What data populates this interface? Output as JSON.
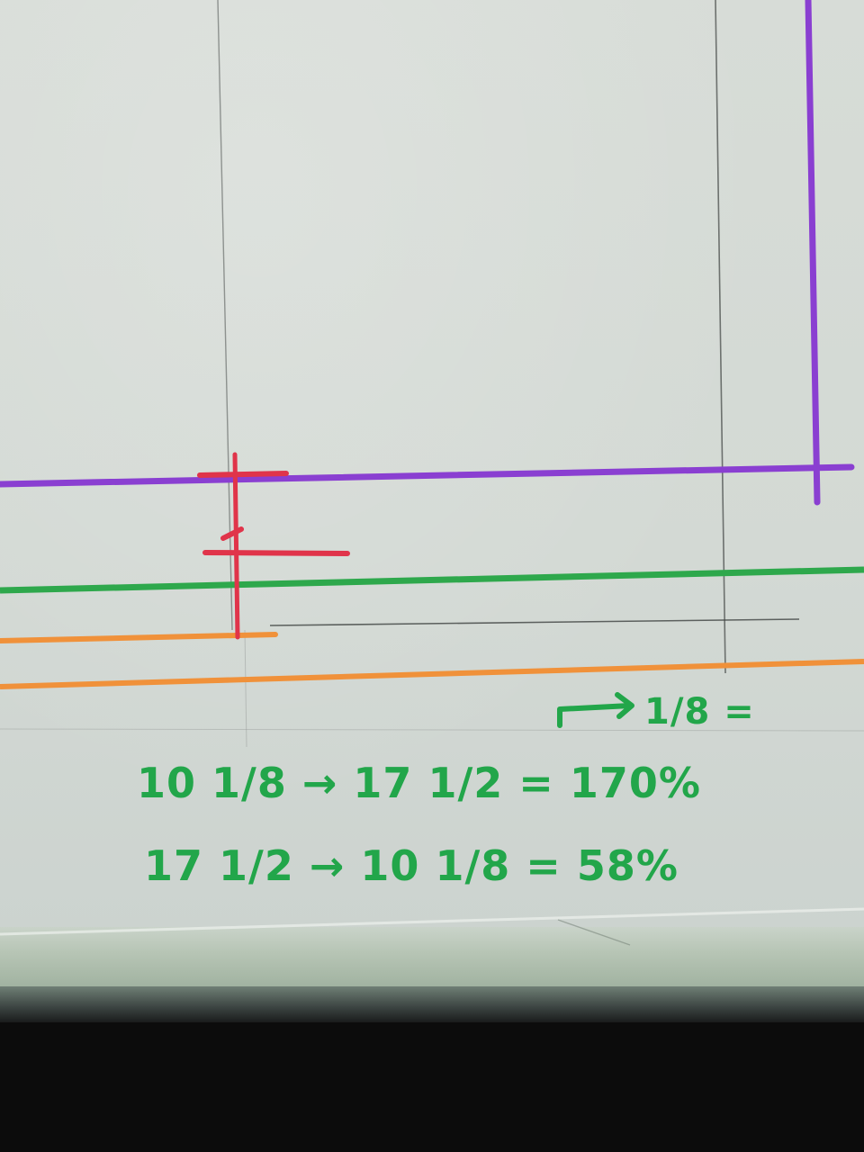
{
  "annotations": {
    "line1": "10 1/8 → 17 1/2 = 170%",
    "line2": "17 1/2 → 10 1/8 = 58%",
    "margin_note": "1/8 ="
  },
  "colors": {
    "purple": "#8a3fd1",
    "green": "#2ea84c",
    "red": "#e0344a",
    "orange": "#f0913a",
    "pencil": "#5a5e5c"
  }
}
